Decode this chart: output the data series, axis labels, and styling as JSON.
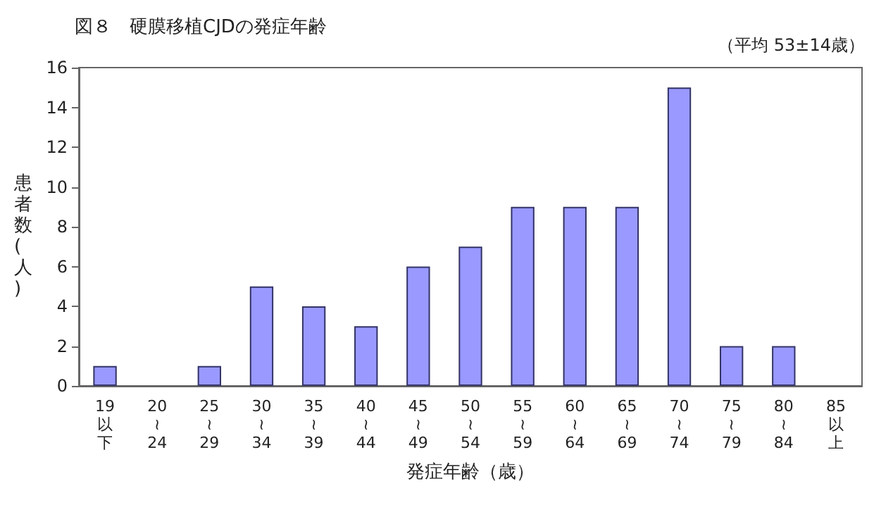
{
  "chart_data": {
    "type": "bar",
    "title": "図８　硬膜移植CJDの発症年齢",
    "annotations": [
      "（平均 53±14歳）"
    ],
    "xlabel": "発症年齢（歳）",
    "ylabel": "患者数(人)",
    "categories": [
      "19以下",
      "20≀24",
      "25≀29",
      "30≀34",
      "35≀39",
      "40≀44",
      "45≀49",
      "50≀54",
      "55≀59",
      "60≀64",
      "65≀69",
      "70≀74",
      "75≀79",
      "80≀84",
      "85以上"
    ],
    "values": [
      1,
      0,
      1,
      5,
      4,
      3,
      6,
      7,
      9,
      9,
      9,
      15,
      2,
      2,
      0
    ],
    "color": "#9999ff",
    "ylim": [
      0,
      16
    ],
    "yticks": [
      0,
      2,
      4,
      6,
      8,
      10,
      12,
      14,
      16
    ],
    "grid": false
  }
}
